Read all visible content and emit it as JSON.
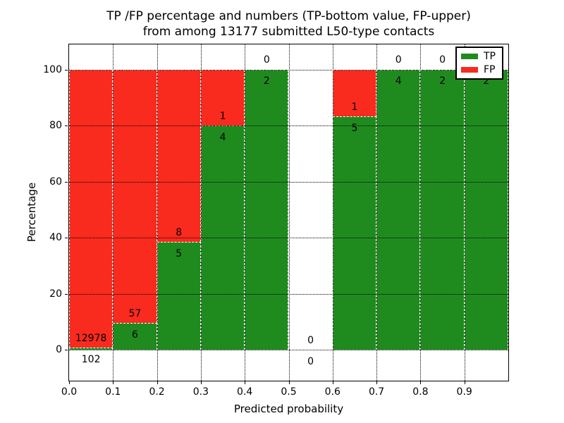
{
  "chart_data": {
    "type": "bar",
    "stacked": true,
    "title_line1": "TP /FP percentage and numbers (TP-bottom value, FP-upper)",
    "title_line2": "from among 13177 submitted L50-type contacts",
    "xlabel": "Predicted probability",
    "ylabel": "Percentage",
    "x_ticks": [
      "0.0",
      "0.1",
      "0.2",
      "0.3",
      "0.4",
      "0.5",
      "0.6",
      "0.7",
      "0.8",
      "0.9"
    ],
    "y_ticks": [
      "0",
      "20",
      "40",
      "60",
      "80",
      "100"
    ],
    "xlim": [
      0.0,
      1.0
    ],
    "ylim": [
      -11,
      109
    ],
    "grid": "dotted",
    "colors": {
      "tp": "#1f8b1f",
      "fp": "#f92a1e"
    },
    "legend": {
      "position": "upper right",
      "items": [
        {
          "label": "TP",
          "color_key": "tp"
        },
        {
          "label": "FP",
          "color_key": "fp"
        }
      ]
    },
    "bins": [
      {
        "range": [
          0.0,
          0.1
        ],
        "tp": 102,
        "fp": 12978
      },
      {
        "range": [
          0.1,
          0.2
        ],
        "tp": 6,
        "fp": 57
      },
      {
        "range": [
          0.2,
          0.3
        ],
        "tp": 5,
        "fp": 8
      },
      {
        "range": [
          0.3,
          0.4
        ],
        "tp": 4,
        "fp": 1
      },
      {
        "range": [
          0.4,
          0.5
        ],
        "tp": 2,
        "fp": 0
      },
      {
        "range": [
          0.5,
          0.6
        ],
        "tp": 0,
        "fp": 0
      },
      {
        "range": [
          0.6,
          0.7
        ],
        "tp": 5,
        "fp": 1
      },
      {
        "range": [
          0.7,
          0.8
        ],
        "tp": 4,
        "fp": 0
      },
      {
        "range": [
          0.8,
          0.9
        ],
        "tp": 2,
        "fp": 0
      },
      {
        "range": [
          0.9,
          1.0
        ],
        "tp": 2,
        "fp": 0
      }
    ]
  }
}
